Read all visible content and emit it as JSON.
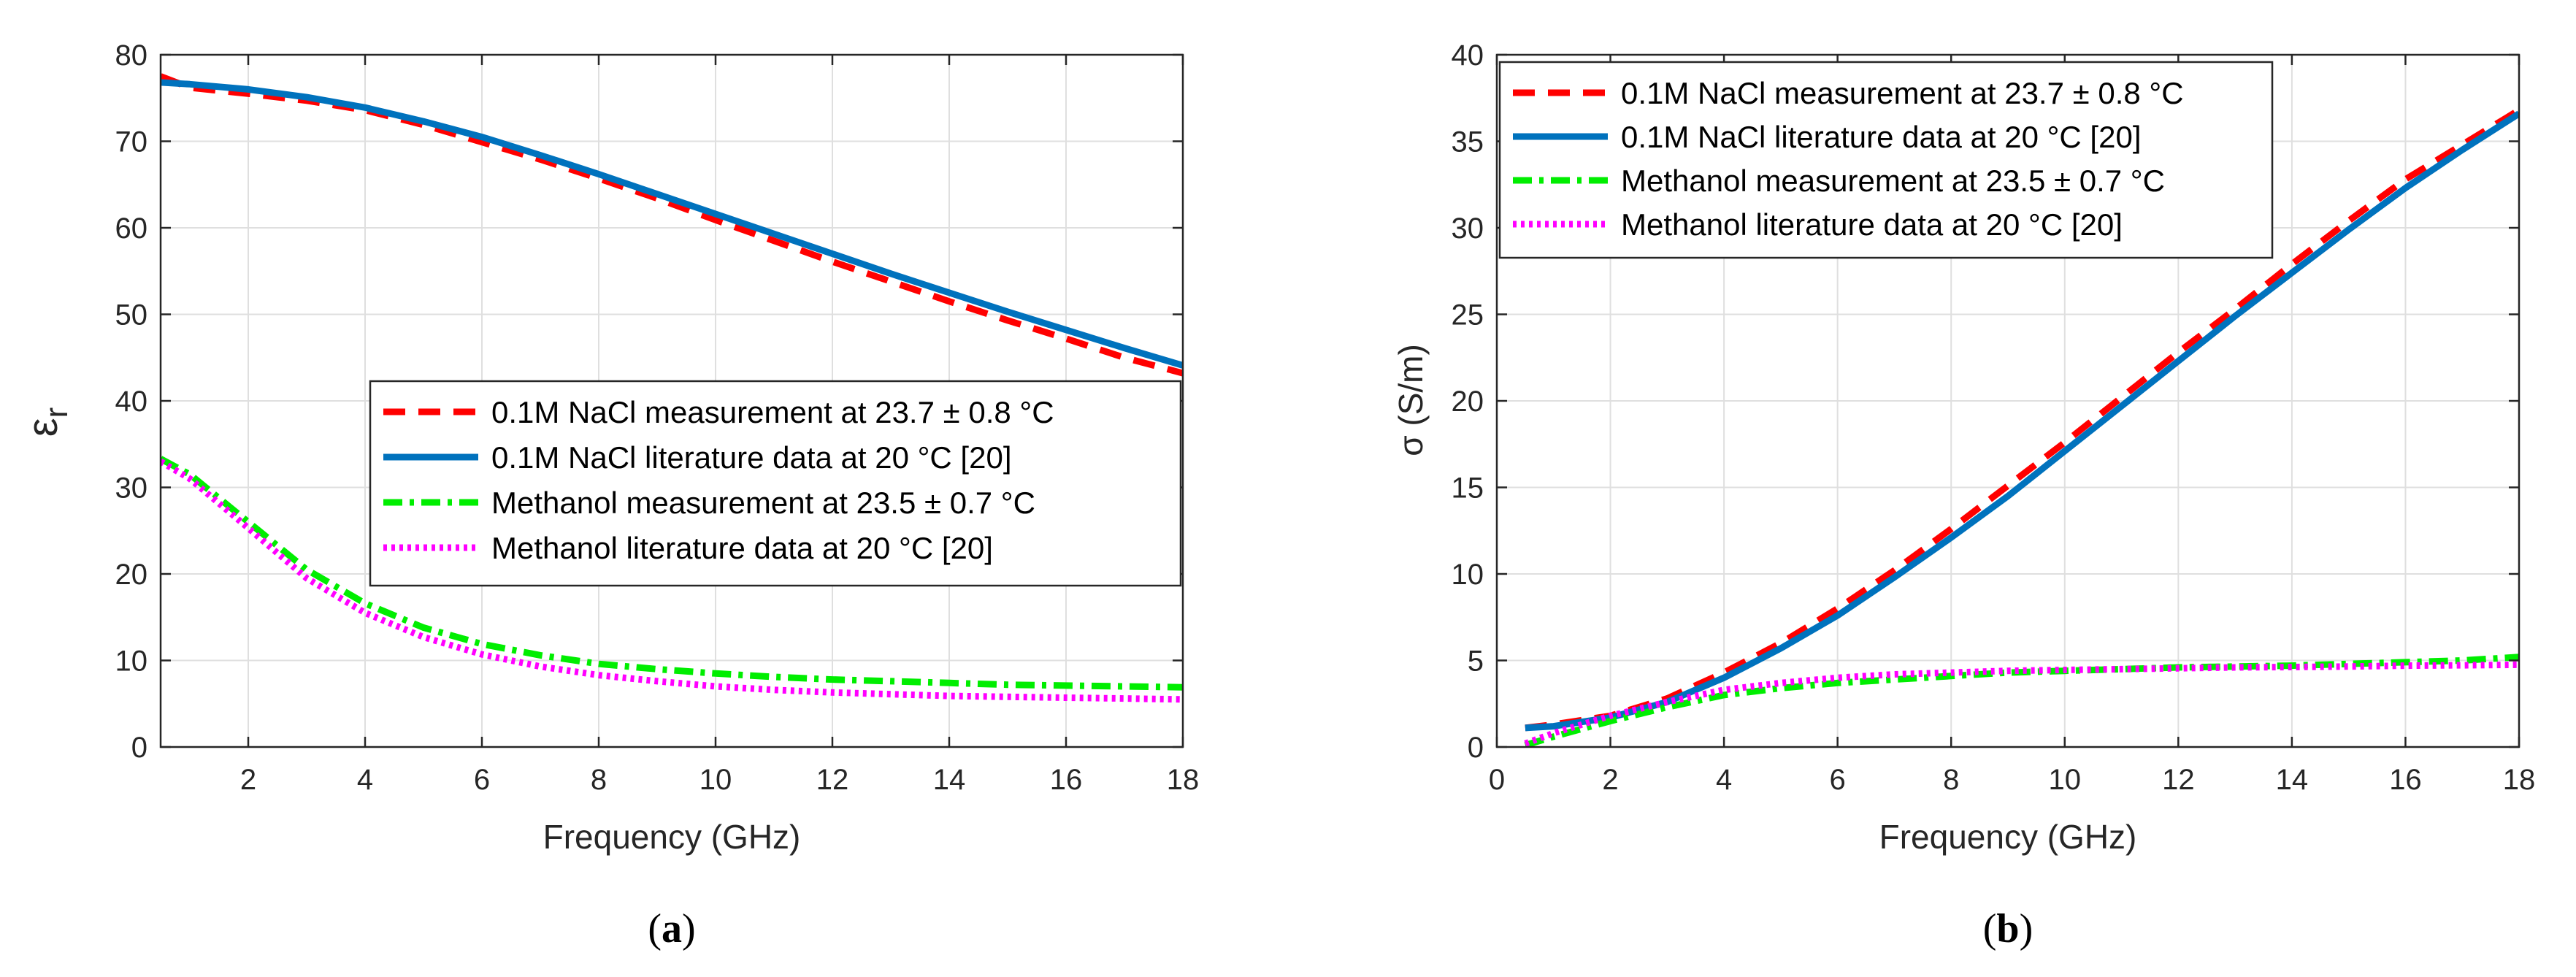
{
  "chart_data": [
    {
      "type": "line",
      "panel_label": "(a)",
      "title": "",
      "xlabel": "Frequency (GHz)",
      "ylabel_symbol": "ε",
      "ylabel_subscript": "r",
      "xlim": [
        0.5,
        18
      ],
      "ylim": [
        0,
        80
      ],
      "xticks": [
        2,
        4,
        6,
        8,
        10,
        12,
        14,
        16,
        18
      ],
      "yticks": [
        0,
        10,
        20,
        30,
        40,
        50,
        60,
        70,
        80
      ],
      "grid": true,
      "legend_position": "center-right",
      "series": [
        {
          "name": "0.1M NaCl measurement  at 23.7 ± 0.8 °C",
          "color": "#ff0000",
          "style": "dashed",
          "x": [
            0.5,
            1,
            2,
            3,
            4,
            5,
            6,
            7,
            8,
            9,
            10,
            11,
            12,
            13,
            14,
            15,
            16,
            17,
            18
          ],
          "y": [
            77.5,
            76.2,
            75.5,
            74.7,
            73.6,
            71.9,
            69.9,
            67.9,
            65.7,
            63.4,
            60.9,
            58.5,
            56.1,
            53.8,
            51.5,
            49.3,
            47.2,
            45.0,
            43.2
          ]
        },
        {
          "name": "0.1M NaCl literature data at 20 °C [20]",
          "color": "#0072bd",
          "style": "solid",
          "x": [
            0.5,
            1,
            2,
            3,
            4,
            5,
            6,
            7,
            8,
            9,
            10,
            11,
            12,
            13,
            14,
            15,
            16,
            17,
            18
          ],
          "y": [
            76.8,
            76.6,
            76.0,
            75.1,
            73.9,
            72.3,
            70.5,
            68.4,
            66.2,
            63.9,
            61.6,
            59.3,
            57.0,
            54.7,
            52.5,
            50.3,
            48.2,
            46.1,
            44.1
          ]
        },
        {
          "name": "Methanol measurement at 23.5 ± 0.7 °C",
          "color": "#00ee00",
          "style": "dashdot",
          "x": [
            0.5,
            1,
            2,
            3,
            4,
            5,
            6,
            7,
            8,
            9,
            10,
            11,
            12,
            13,
            14,
            15,
            16,
            17,
            18
          ],
          "y": [
            33.3,
            31.5,
            26.0,
            20.5,
            16.6,
            13.8,
            11.9,
            10.6,
            9.6,
            9.0,
            8.5,
            8.1,
            7.8,
            7.6,
            7.4,
            7.2,
            7.1,
            7.0,
            6.9
          ]
        },
        {
          "name": "Methanol literature data at  20 °C [20]",
          "color": "#ff00ff",
          "style": "dotted",
          "x": [
            0.5,
            1,
            2,
            3,
            4,
            5,
            6,
            7,
            8,
            9,
            10,
            11,
            12,
            13,
            14,
            15,
            16,
            17,
            18
          ],
          "y": [
            33.0,
            31.0,
            25.3,
            19.5,
            15.5,
            12.7,
            10.7,
            9.3,
            8.3,
            7.6,
            7.0,
            6.6,
            6.3,
            6.1,
            5.9,
            5.8,
            5.7,
            5.6,
            5.5
          ]
        }
      ]
    },
    {
      "type": "line",
      "panel_label": "(b)",
      "title": "",
      "xlabel": "Frequency (GHz)",
      "ylabel": "σ (S/m)",
      "xlim": [
        0,
        18
      ],
      "ylim": [
        0,
        40
      ],
      "xticks": [
        0,
        2,
        4,
        6,
        8,
        10,
        12,
        14,
        16,
        18
      ],
      "yticks": [
        0,
        5,
        10,
        15,
        20,
        25,
        30,
        35,
        40
      ],
      "grid": true,
      "legend_position": "top-left",
      "series": [
        {
          "name": "0.1M NaCl measurement at 23.7 ± 0.8 °C",
          "color": "#ff0000",
          "style": "dashed",
          "x": [
            0.5,
            1,
            2,
            3,
            4,
            5,
            6,
            7,
            8,
            9,
            10,
            11,
            12,
            13,
            14,
            15,
            16,
            17,
            18
          ],
          "y": [
            1.1,
            1.3,
            1.8,
            2.8,
            4.3,
            6.0,
            8.0,
            10.2,
            12.6,
            15.1,
            17.6,
            20.2,
            22.8,
            25.3,
            27.9,
            30.4,
            32.8,
            34.8,
            36.8
          ]
        },
        {
          "name": "0.1M NaCl literature data at 20 °C [20]",
          "color": "#0072bd",
          "style": "solid",
          "x": [
            0.5,
            1,
            2,
            3,
            4,
            5,
            6,
            7,
            8,
            9,
            10,
            11,
            12,
            13,
            14,
            15,
            16,
            17,
            18
          ],
          "y": [
            1.1,
            1.2,
            1.7,
            2.6,
            4.0,
            5.7,
            7.6,
            9.8,
            12.1,
            14.5,
            17.1,
            19.7,
            22.3,
            24.9,
            27.4,
            29.9,
            32.3,
            34.5,
            36.6
          ]
        },
        {
          "name": "Methanol measurement at 23.5 ± 0.7 °C",
          "color": "#00ee00",
          "style": "dashdot",
          "x": [
            0.5,
            1,
            2,
            3,
            4,
            5,
            6,
            7,
            8,
            9,
            10,
            11,
            12,
            13,
            14,
            15,
            16,
            17,
            18
          ],
          "y": [
            0.1,
            0.6,
            1.5,
            2.3,
            3.0,
            3.4,
            3.7,
            3.9,
            4.1,
            4.3,
            4.4,
            4.5,
            4.6,
            4.65,
            4.7,
            4.8,
            4.9,
            5.0,
            5.2
          ]
        },
        {
          "name": "Methanol literature data at 20 °C [20]",
          "color": "#ff00ff",
          "style": "dotted",
          "x": [
            0.5,
            1,
            2,
            3,
            4,
            5,
            6,
            7,
            8,
            9,
            10,
            11,
            12,
            13,
            14,
            15,
            16,
            17,
            18
          ],
          "y": [
            0.2,
            0.8,
            1.8,
            2.6,
            3.3,
            3.7,
            4.0,
            4.2,
            4.3,
            4.4,
            4.45,
            4.5,
            4.55,
            4.6,
            4.62,
            4.65,
            4.7,
            4.72,
            4.75
          ]
        }
      ]
    }
  ]
}
